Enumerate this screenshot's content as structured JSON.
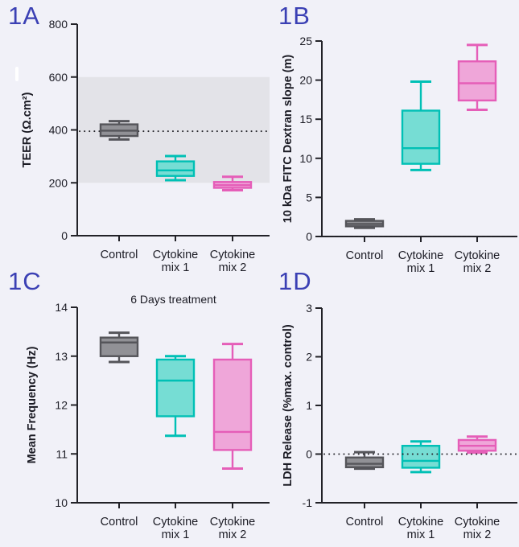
{
  "page": {
    "background": "#f1f1f8"
  },
  "colors": {
    "panel_label": "#3b40b4",
    "text": "#1b1b24",
    "axis": "#222228",
    "dotted": "#26262b",
    "band": "#e3e3e8",
    "gray_fill": "#919196",
    "gray_stroke": "#55555a",
    "teal_fill": "#76ddd4",
    "teal_stroke": "#00c0b5",
    "pink_fill": "#efa6d9",
    "pink_stroke": "#e55eb8"
  },
  "chart_data": [
    {
      "type": "box",
      "panel_label": "1A",
      "title": "",
      "ylabel": "TEER (Ω.cm²)",
      "ylim": [
        0,
        800
      ],
      "yticks": [
        0,
        200,
        400,
        600,
        800
      ],
      "band": [
        200,
        600
      ],
      "dotted_line": 395,
      "dotted_on_top": false,
      "categories": [
        [
          "Control"
        ],
        [
          "Cytokine",
          "mix 1"
        ],
        [
          "Cytokine",
          "mix 2"
        ]
      ],
      "series": [
        {
          "name": "Control",
          "color": "gray",
          "lo": 364,
          "q1": 377,
          "median": 397,
          "q3": 421,
          "hi": 433
        },
        {
          "name": "Cytokine mix 1",
          "color": "teal",
          "lo": 210,
          "q1": 226,
          "median": 247,
          "q3": 281,
          "hi": 301
        },
        {
          "name": "Cytokine mix 2",
          "color": "pink",
          "lo": 172,
          "q1": 181,
          "median": 191,
          "q3": 203,
          "hi": 223
        }
      ]
    },
    {
      "type": "box",
      "panel_label": "1B",
      "title": "",
      "ylabel": "10 kDa FITC Dextran slope (m)",
      "ylim": [
        0,
        25
      ],
      "yticks": [
        0,
        5,
        10,
        15,
        20,
        25
      ],
      "band": null,
      "dotted_line": 0,
      "dotted_on_top": true,
      "categories": [
        [
          "Control"
        ],
        [
          "Cytokine",
          "mix 1"
        ],
        [
          "Cytokine",
          "mix 2"
        ]
      ],
      "series": [
        {
          "name": "Control",
          "color": "gray",
          "lo": 1.1,
          "q1": 1.3,
          "median": 1.6,
          "q3": 2.0,
          "hi": 2.2
        },
        {
          "name": "Cytokine mix 1",
          "color": "teal",
          "lo": 8.5,
          "q1": 9.3,
          "median": 11.3,
          "q3": 16.1,
          "hi": 19.8
        },
        {
          "name": "Cytokine mix 2",
          "color": "pink",
          "lo": 16.2,
          "q1": 17.4,
          "median": 19.6,
          "q3": 22.4,
          "hi": 24.5
        }
      ]
    },
    {
      "type": "box",
      "panel_label": "1C",
      "title": "6 Days treatment",
      "ylabel": "Mean Frequency (Hz)",
      "ylim": [
        10,
        14
      ],
      "yticks": [
        10,
        11,
        12,
        13,
        14
      ],
      "band": null,
      "dotted_line": null,
      "dotted_on_top": false,
      "categories": [
        [
          "Control"
        ],
        [
          "Cytokine",
          "mix 1"
        ],
        [
          "Cytokine",
          "mix 2"
        ]
      ],
      "series": [
        {
          "name": "Control",
          "color": "gray",
          "lo": 12.88,
          "q1": 13.0,
          "median": 13.28,
          "q3": 13.38,
          "hi": 13.48
        },
        {
          "name": "Cytokine mix 1",
          "color": "teal",
          "lo": 11.37,
          "q1": 11.77,
          "median": 12.5,
          "q3": 12.93,
          "hi": 13.0
        },
        {
          "name": "Cytokine mix 2",
          "color": "pink",
          "lo": 10.7,
          "q1": 11.08,
          "median": 11.45,
          "q3": 12.93,
          "hi": 13.25
        }
      ]
    },
    {
      "type": "box",
      "panel_label": "1D",
      "title": "",
      "ylabel": "LDH Release (%max. control)",
      "ylim": [
        -1,
        3
      ],
      "yticks": [
        -1,
        0,
        1,
        2,
        3
      ],
      "band": null,
      "dotted_line": 0,
      "dotted_on_top": true,
      "categories": [
        [
          "Control"
        ],
        [
          "Cytokine",
          "mix 1"
        ],
        [
          "Cytokine",
          "mix 2"
        ]
      ],
      "series": [
        {
          "name": "Control",
          "color": "gray",
          "lo": -0.3,
          "q1": -0.27,
          "median": -0.2,
          "q3": -0.07,
          "hi": 0.04
        },
        {
          "name": "Cytokine mix 1",
          "color": "teal",
          "lo": -0.37,
          "q1": -0.28,
          "median": -0.14,
          "q3": 0.17,
          "hi": 0.26
        },
        {
          "name": "Cytokine mix 2",
          "color": "pink",
          "lo": 0.03,
          "q1": 0.07,
          "median": 0.17,
          "q3": 0.29,
          "hi": 0.36
        }
      ]
    }
  ]
}
